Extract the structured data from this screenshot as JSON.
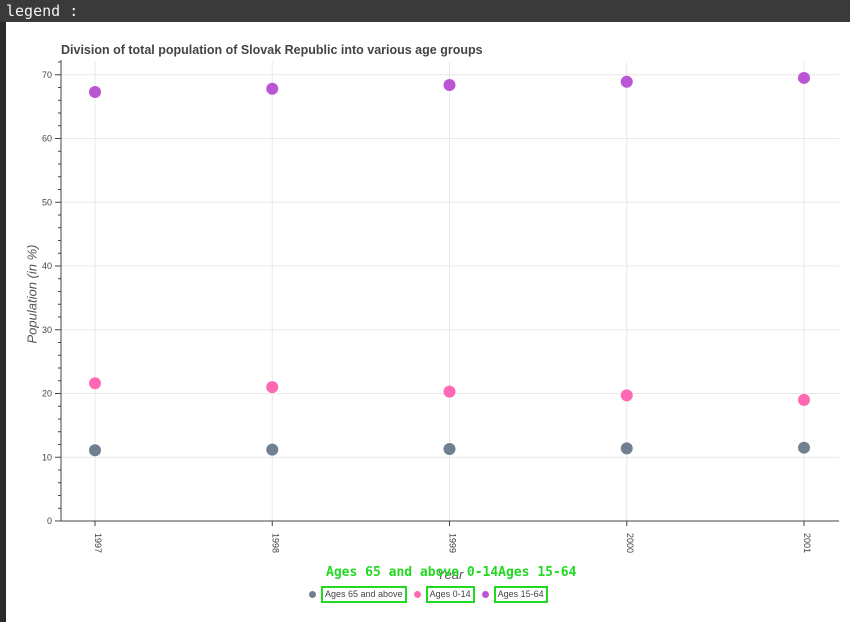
{
  "header": {
    "label": "legend :"
  },
  "chart_data": {
    "type": "scatter",
    "title": "Division of total population of Slovak Republic into various age groups",
    "xlabel": "Year",
    "ylabel": "Population (in %)",
    "x": [
      "1997",
      "1998",
      "1999",
      "2000",
      "2001"
    ],
    "ylim": [
      0,
      72
    ],
    "yticks": [
      "0",
      "10",
      "20",
      "30",
      "40",
      "50",
      "60",
      "70"
    ],
    "grid": true,
    "legend_position": "bottom",
    "series": [
      {
        "name": "Ages 65 and above",
        "color": "#708090",
        "values": [
          11.1,
          11.2,
          11.3,
          11.4,
          11.5
        ]
      },
      {
        "name": "Ages 0-14",
        "color": "#ff69b4",
        "values": [
          21.6,
          21.0,
          20.3,
          19.7,
          19.0
        ]
      },
      {
        "name": "Ages 15-64",
        "color": "#ba55d3",
        "values": [
          67.3,
          67.8,
          68.4,
          68.9,
          69.5
        ]
      }
    ]
  },
  "overlay": {
    "text": "Ages 65 and above 0-14Ages 15-64"
  }
}
